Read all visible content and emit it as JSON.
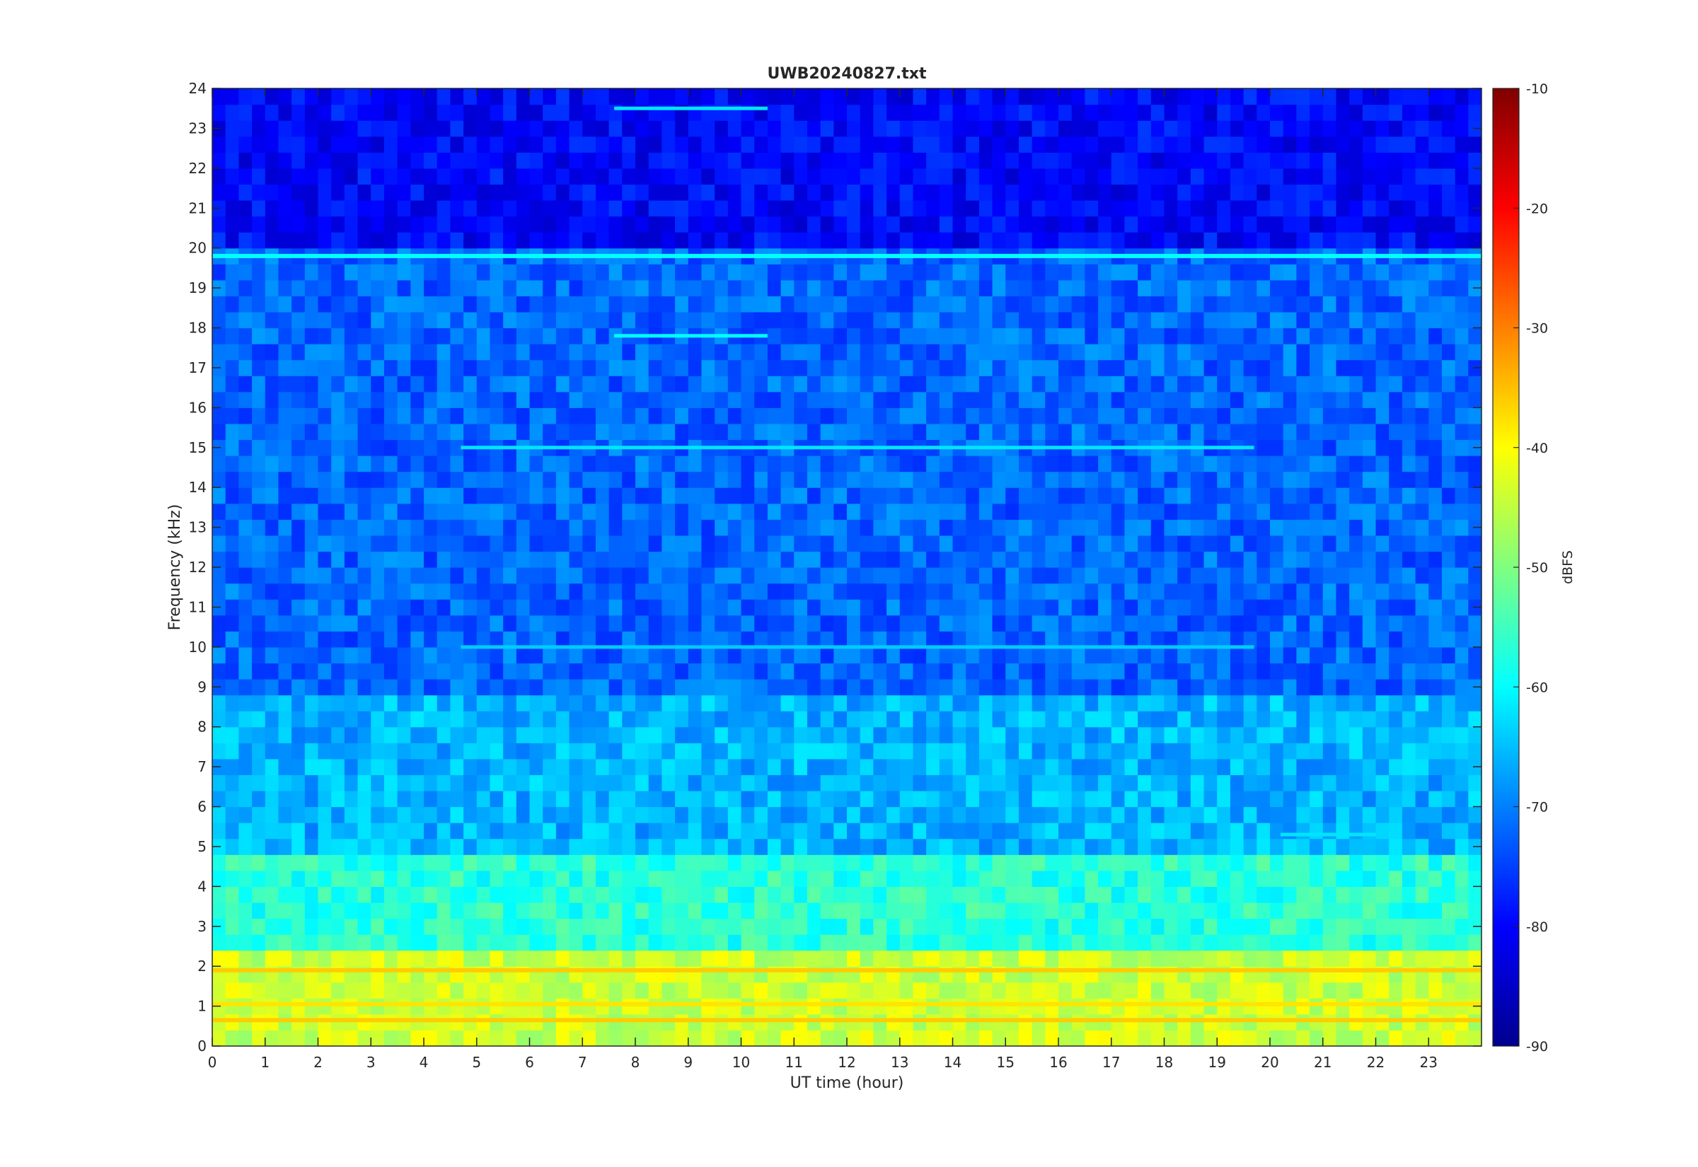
{
  "chart_data": {
    "type": "heatmap",
    "title": "UWB20240827.txt",
    "xlabel": "UT time (hour)",
    "ylabel": "Frequency (kHz)",
    "colorbar_label": "dBFS",
    "xlim": [
      0,
      24
    ],
    "ylim": [
      0,
      24
    ],
    "clim": [
      -90,
      -10
    ],
    "colormap": "jet",
    "x_ticks": [
      "0",
      "1",
      "2",
      "3",
      "4",
      "5",
      "6",
      "7",
      "8",
      "9",
      "10",
      "11",
      "12",
      "13",
      "14",
      "15",
      "16",
      "17",
      "18",
      "19",
      "20",
      "21",
      "22",
      "23"
    ],
    "y_ticks": [
      "0",
      "1",
      "2",
      "3",
      "4",
      "5",
      "6",
      "7",
      "8",
      "9",
      "10",
      "11",
      "12",
      "13",
      "14",
      "15",
      "16",
      "17",
      "18",
      "19",
      "20",
      "21",
      "22",
      "23",
      "24"
    ],
    "colorbar_ticks": [
      "-90",
      "-80",
      "-70",
      "-60",
      "-50",
      "-40",
      "-30",
      "-20",
      "-10"
    ],
    "background_levels_dbfs": [
      {
        "freq_khz": [
          0,
          2.5
        ],
        "level": -44
      },
      {
        "freq_khz": [
          2.5,
          5
        ],
        "level": -57
      },
      {
        "freq_khz": [
          5,
          9
        ],
        "level": -66
      },
      {
        "freq_khz": [
          9,
          20
        ],
        "level": -72
      },
      {
        "freq_khz": [
          20,
          24
        ],
        "level": -80
      }
    ],
    "persistent_lines": [
      {
        "freq_khz": 19.8,
        "t_hours": [
          0,
          24
        ],
        "level": -60
      },
      {
        "freq_khz": 1.9,
        "t_hours": [
          0,
          24
        ],
        "level": -36
      },
      {
        "freq_khz": 1.05,
        "t_hours": [
          0,
          24
        ],
        "level": -38
      },
      {
        "freq_khz": 0.65,
        "t_hours": [
          0,
          24
        ],
        "level": -36
      }
    ],
    "band_features": [
      {
        "freq_khz": 15.0,
        "t_hours": [
          4.7,
          19.7
        ],
        "level": -62
      },
      {
        "freq_khz": 10.0,
        "t_hours": [
          4.7,
          19.7
        ],
        "level": -64
      },
      {
        "freq_khz": 17.8,
        "t_hours": [
          7.6,
          10.5
        ],
        "level": -60
      },
      {
        "freq_khz": 23.5,
        "t_hours": [
          7.6,
          10.5
        ],
        "level": -62
      },
      {
        "freq_khz": 5.3,
        "t_hours": [
          20.2,
          22.0
        ],
        "level": -62
      }
    ]
  }
}
